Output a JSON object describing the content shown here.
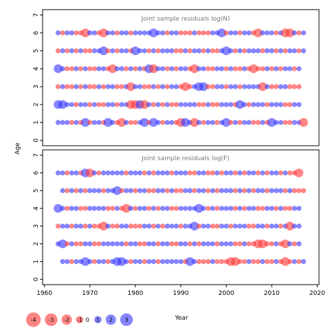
{
  "chart_data": [
    {
      "type": "scatter",
      "title": "Joint sample residuals log(N)",
      "xlabel": "",
      "ylabel": "Age",
      "xlim": [
        1959.6,
        2020.4
      ],
      "ylim": [
        -0.3,
        7.3
      ],
      "yticks": [
        0,
        1,
        2,
        3,
        4,
        5,
        6,
        7
      ],
      "ages": [
        1,
        2,
        3,
        4,
        5,
        6
      ],
      "grid": false,
      "encoding": {
        "size": "residual magnitude",
        "color_positive": "#3333ff",
        "color_negative": "#ff3333"
      },
      "residuals": {
        "1": [
          1,
          1,
          1,
          -1,
          1,
          -1,
          2,
          -1,
          1,
          1,
          -1,
          2,
          1,
          -1,
          -2,
          1,
          -1,
          -1,
          1,
          2,
          -1,
          2,
          1,
          -1,
          1,
          1,
          -1,
          -2,
          2,
          1,
          -2,
          1,
          -1,
          1,
          1,
          -1,
          1,
          2,
          -1,
          1,
          -1,
          1,
          1,
          -1,
          -1,
          1,
          -1,
          2,
          1,
          1,
          -1,
          -1,
          1,
          1,
          -2
        ],
        "2": [
          2,
          2,
          1,
          1,
          -1,
          1,
          1,
          -1,
          1,
          -1,
          -1,
          1,
          1,
          -1,
          1,
          1,
          -2,
          -2,
          2,
          -2,
          1,
          -1,
          1,
          -1,
          1,
          -1,
          -1,
          1,
          1,
          1,
          1,
          -1,
          -1,
          1,
          -1,
          -1,
          1,
          1,
          1,
          -1,
          2,
          1,
          -1,
          1,
          1,
          1,
          -1,
          1,
          1,
          1,
          -1,
          -1,
          1,
          1
        ],
        "3": [
          -1,
          1,
          -1,
          -1,
          1,
          -1,
          1,
          -1,
          -1,
          1,
          -1,
          1,
          1,
          -1,
          -1,
          1,
          -2,
          1,
          1,
          -1,
          -1,
          1,
          -1,
          1,
          -1,
          1,
          1,
          -1,
          -2,
          -1,
          1,
          2,
          2,
          -1,
          -1,
          1,
          1,
          -1,
          1,
          1,
          -1,
          1,
          1,
          1,
          1,
          -2,
          1,
          -1,
          -1,
          1,
          1,
          -1,
          -1,
          -1
        ],
        "4": [
          2,
          1,
          -1,
          -1,
          1,
          -1,
          1,
          -1,
          -1,
          1,
          1,
          -1,
          -2,
          1,
          1,
          -1,
          1,
          -1,
          1,
          -1,
          2,
          -2,
          1,
          1,
          -1,
          1,
          -1,
          1,
          1,
          -1,
          -2,
          1,
          1,
          -1,
          -1,
          1,
          1,
          -1,
          1,
          -1,
          -1,
          1,
          -1,
          -2,
          -1,
          -1,
          1,
          -1,
          1,
          -1,
          1,
          1,
          -1,
          1
        ],
        "5": [
          -1,
          1,
          -1,
          1,
          -1,
          1,
          -1,
          -1,
          1,
          1,
          2,
          -1,
          1,
          -1,
          1,
          1,
          -1,
          2,
          1,
          1,
          -1,
          1,
          -1,
          1,
          1,
          1,
          -1,
          -1,
          1,
          -1,
          1,
          1,
          -1,
          1,
          -1,
          -1,
          1,
          2,
          1,
          -1,
          1,
          -1,
          1,
          1,
          1,
          -1,
          1,
          1,
          -1,
          1,
          -1,
          1,
          1,
          -1,
          1
        ],
        "6": [
          1,
          -1,
          1,
          1,
          -1,
          -1,
          -2,
          1,
          1,
          -1,
          -2,
          1,
          1,
          -1,
          1,
          1,
          -1,
          1,
          1,
          1,
          1,
          2,
          1,
          1,
          -1,
          1,
          1,
          -1,
          -1,
          -1,
          1,
          -1,
          -1,
          -1,
          1,
          1,
          2,
          -1,
          1,
          1,
          -1,
          1,
          1,
          -1,
          -2,
          1,
          1,
          1,
          -1,
          1,
          -2,
          -2,
          1,
          -1,
          1
        ]
      },
      "start_years": {
        "1": 1963,
        "2": 1963,
        "3": 1963,
        "4": 1963,
        "5": 1963,
        "6": 1963
      }
    },
    {
      "type": "scatter",
      "title": "Joint sample residuals log(F)",
      "xlabel": "Year",
      "ylabel": "",
      "xlim": [
        1959.6,
        2020.4
      ],
      "ylim": [
        -0.3,
        7.3
      ],
      "xticks": [
        1960,
        1970,
        1980,
        1990,
        2000,
        2010,
        2020
      ],
      "yticks": [
        0,
        1,
        2,
        3,
        4,
        5,
        6,
        7
      ],
      "ages": [
        1,
        2,
        3,
        4,
        5,
        6
      ],
      "grid": false,
      "encoding": {
        "size": "residual magnitude",
        "color_positive": "#3333ff",
        "color_negative": "#ff3333"
      },
      "residuals": {
        "1": [
          1,
          1,
          -1,
          1,
          1,
          2,
          1,
          -1,
          1,
          1,
          -1,
          1,
          2,
          2,
          1,
          -1,
          1,
          1,
          -1,
          1,
          1,
          -1,
          1,
          1,
          1,
          1,
          1,
          -1,
          2,
          1,
          -1,
          -1,
          -1,
          1,
          -1,
          -1,
          -1,
          -2,
          -2,
          -1,
          -1,
          1,
          -1,
          -1,
          1,
          -1,
          -1,
          1,
          -1,
          -2,
          -1,
          1,
          -1,
          1
        ],
        "2": [
          1,
          2,
          -1,
          1,
          -1,
          -1,
          1,
          1,
          -1,
          -1,
          1,
          1,
          1,
          1,
          1,
          -1,
          1,
          1,
          -1,
          -1,
          1,
          1,
          -1,
          1,
          1,
          -1,
          -1,
          1,
          1,
          -1,
          1,
          -1,
          1,
          1,
          1,
          -1,
          1,
          1,
          1,
          -1,
          -1,
          1,
          -1,
          -1,
          -2,
          -2,
          -1,
          -1,
          1,
          -1,
          -2,
          1,
          -1,
          1
        ],
        "3": [
          -1,
          1,
          1,
          -1,
          1,
          1,
          -1,
          1,
          -1,
          -1,
          -2,
          1,
          -1,
          -1,
          1,
          1,
          -1,
          -1,
          -1,
          1,
          1,
          -1,
          1,
          -1,
          1,
          1,
          1,
          -1,
          1,
          1,
          2,
          -1,
          1,
          1,
          -1,
          -1,
          1,
          1,
          -1,
          1,
          1,
          1,
          -1,
          -1,
          1,
          1,
          -1,
          1,
          1,
          -1,
          1,
          -2,
          1,
          1
        ],
        "4": [
          2,
          1,
          -1,
          1,
          1,
          -1,
          -1,
          1,
          1,
          1,
          1,
          -1,
          -1,
          1,
          -1,
          -2,
          1,
          -1,
          1,
          1,
          -1,
          1,
          -1,
          1,
          1,
          -1,
          -1,
          1,
          1,
          1,
          1,
          2,
          1,
          -1,
          1,
          -1,
          1,
          1,
          1,
          -1,
          1,
          -1,
          1,
          1,
          -1,
          -1,
          1,
          1,
          -1,
          1,
          -1,
          -1,
          1,
          1
        ],
        "5": [
          1,
          -1,
          1,
          -1,
          1,
          -1,
          1,
          1,
          1,
          -1,
          1,
          1,
          2,
          -1,
          1,
          1,
          -1,
          1,
          1,
          -1,
          -1,
          1,
          1,
          -1,
          1,
          -1,
          -1,
          1,
          1,
          -1,
          1,
          1,
          -1,
          1,
          -1,
          1,
          1,
          1,
          -1,
          1,
          -1,
          1,
          -1,
          1,
          1,
          -1,
          1,
          1,
          1,
          -1,
          1,
          -1,
          -1,
          -1
        ],
        "6": [
          1,
          1,
          -1,
          1,
          1,
          -1,
          2,
          -2,
          1,
          -1,
          1,
          1,
          1,
          1,
          1,
          -1,
          1,
          1,
          1,
          -1,
          1,
          -1,
          1,
          1,
          1,
          -1,
          1,
          1,
          1,
          -1,
          -1,
          1,
          1,
          -1,
          -1,
          1,
          -1,
          1,
          1,
          -1,
          1,
          -1,
          1,
          1,
          -1,
          1,
          -1,
          1,
          1,
          -1,
          1,
          -1,
          -1,
          -2
        ]
      },
      "start_years": {
        "1": 1964,
        "2": 1963,
        "3": 1963,
        "4": 1963,
        "5": 1964,
        "6": 1963
      }
    }
  ],
  "legend": {
    "items": [
      {
        "label": "-4",
        "value": -4
      },
      {
        "label": "-3",
        "value": -3
      },
      {
        "label": "-2",
        "value": -2
      },
      {
        "label": "-1",
        "value": -1
      },
      {
        "label": "0",
        "value": 0
      },
      {
        "label": "1",
        "value": 1
      },
      {
        "label": "2",
        "value": 2
      },
      {
        "label": "3",
        "value": 3
      }
    ],
    "placement": "bottom-left"
  }
}
